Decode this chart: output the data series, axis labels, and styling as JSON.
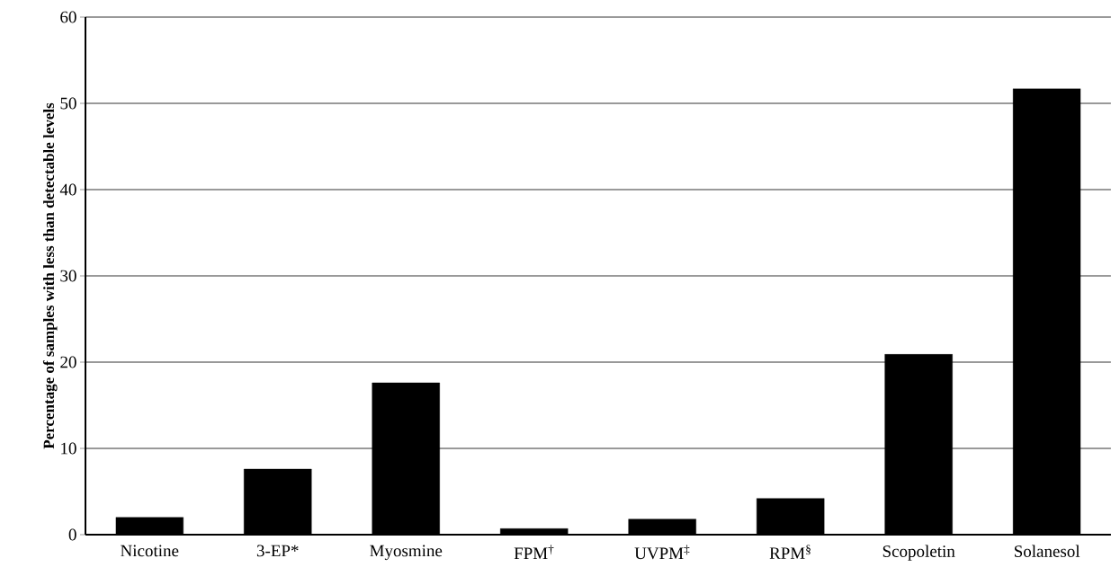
{
  "chart_data": {
    "type": "bar",
    "ylabel": "Percentage of samples with less than detectable levels",
    "categories": [
      "Nicotine",
      "3-EP*",
      "Myosmine",
      "FPM$^{†}$",
      "UVPM$^{‡}$",
      "RPM$^{§}$",
      "Scopoletin",
      "Solanesol"
    ],
    "values": [
      2.0,
      7.6,
      17.6,
      0.7,
      1.8,
      4.2,
      20.9,
      51.7
    ],
    "color": "#000000",
    "ylim": [
      0,
      60
    ],
    "yticks": [
      0,
      10,
      20,
      30,
      40,
      50,
      60
    ],
    "grid": "y"
  }
}
